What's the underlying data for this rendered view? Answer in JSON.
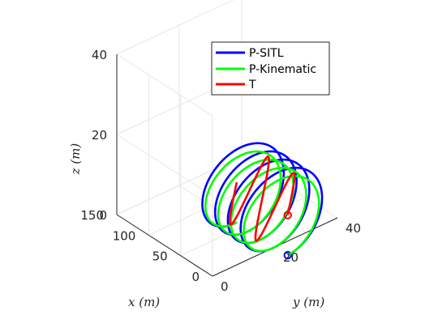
{
  "chart_data": {
    "type": "line",
    "view": "3d-isometric",
    "xlabel": "x (m)",
    "ylabel": "y (m)",
    "zlabel": "z (m)",
    "xlim": [
      0,
      150
    ],
    "ylim": [
      0,
      40
    ],
    "zlim": [
      0,
      40
    ],
    "xticks": [
      "0",
      "50",
      "100",
      "150"
    ],
    "yticks": [
      "0",
      "20",
      "40"
    ],
    "zticks": [
      "0",
      "20",
      "40"
    ],
    "grid": true,
    "legend_position": "top-right",
    "colors": {
      "P-SITL": "#0000ff",
      "P-Kinematic": "#00ff00",
      "T": "#ff0000"
    },
    "series": [
      {
        "name": "P-SITL",
        "path": "loop",
        "start_marker": "circle",
        "loop_count": 4,
        "loop_radius": 12,
        "x_range": [
          -20,
          60
        ],
        "y": 20,
        "z": 0,
        "z_amplitude": 20
      },
      {
        "name": "P-Kinematic",
        "path": "loop",
        "loop_count": 4,
        "loop_radius": 11,
        "x_range": [
          -20,
          60
        ],
        "y": 20,
        "z": 0,
        "z_amplitude": 18
      },
      {
        "name": "T",
        "path": "wave",
        "start_marker": "circle",
        "x_range": [
          -20,
          60
        ],
        "y": 20,
        "z": 10,
        "z_amplitude": 8
      }
    ]
  }
}
